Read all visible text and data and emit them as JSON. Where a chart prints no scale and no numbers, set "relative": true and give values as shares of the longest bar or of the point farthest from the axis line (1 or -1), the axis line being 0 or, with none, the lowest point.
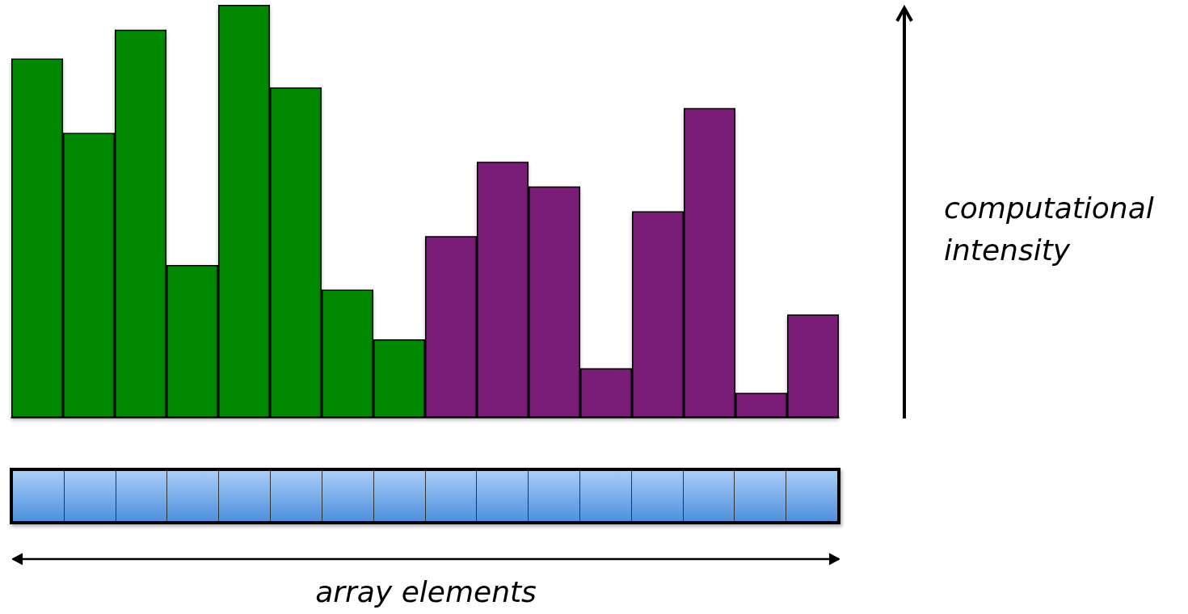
{
  "chart_data": {
    "type": "bar",
    "relative": true,
    "annotations": [
      "array elements"
    ],
    "ylabel": "computational intensity",
    "categories": [
      null,
      null,
      null,
      null,
      null,
      null,
      null,
      null,
      null,
      null,
      null,
      null,
      null,
      null,
      null,
      null
    ],
    "values": [
      0.87,
      0.69,
      0.94,
      0.37,
      1,
      0.8,
      0.31,
      0.19,
      0.44,
      0.62,
      0.56,
      0.12,
      0.5,
      0.75,
      0.06,
      0.25
    ],
    "colors": [
      "#008800",
      "#008800",
      "#008800",
      "#008800",
      "#008800",
      "#008800",
      "#008800",
      "#008800",
      "#7a1c78",
      "#7a1c78",
      "#7a1c78",
      "#7a1c78",
      "#7a1c78",
      "#7a1c78",
      "#7a1c78",
      "#7a1c78"
    ]
  }
}
